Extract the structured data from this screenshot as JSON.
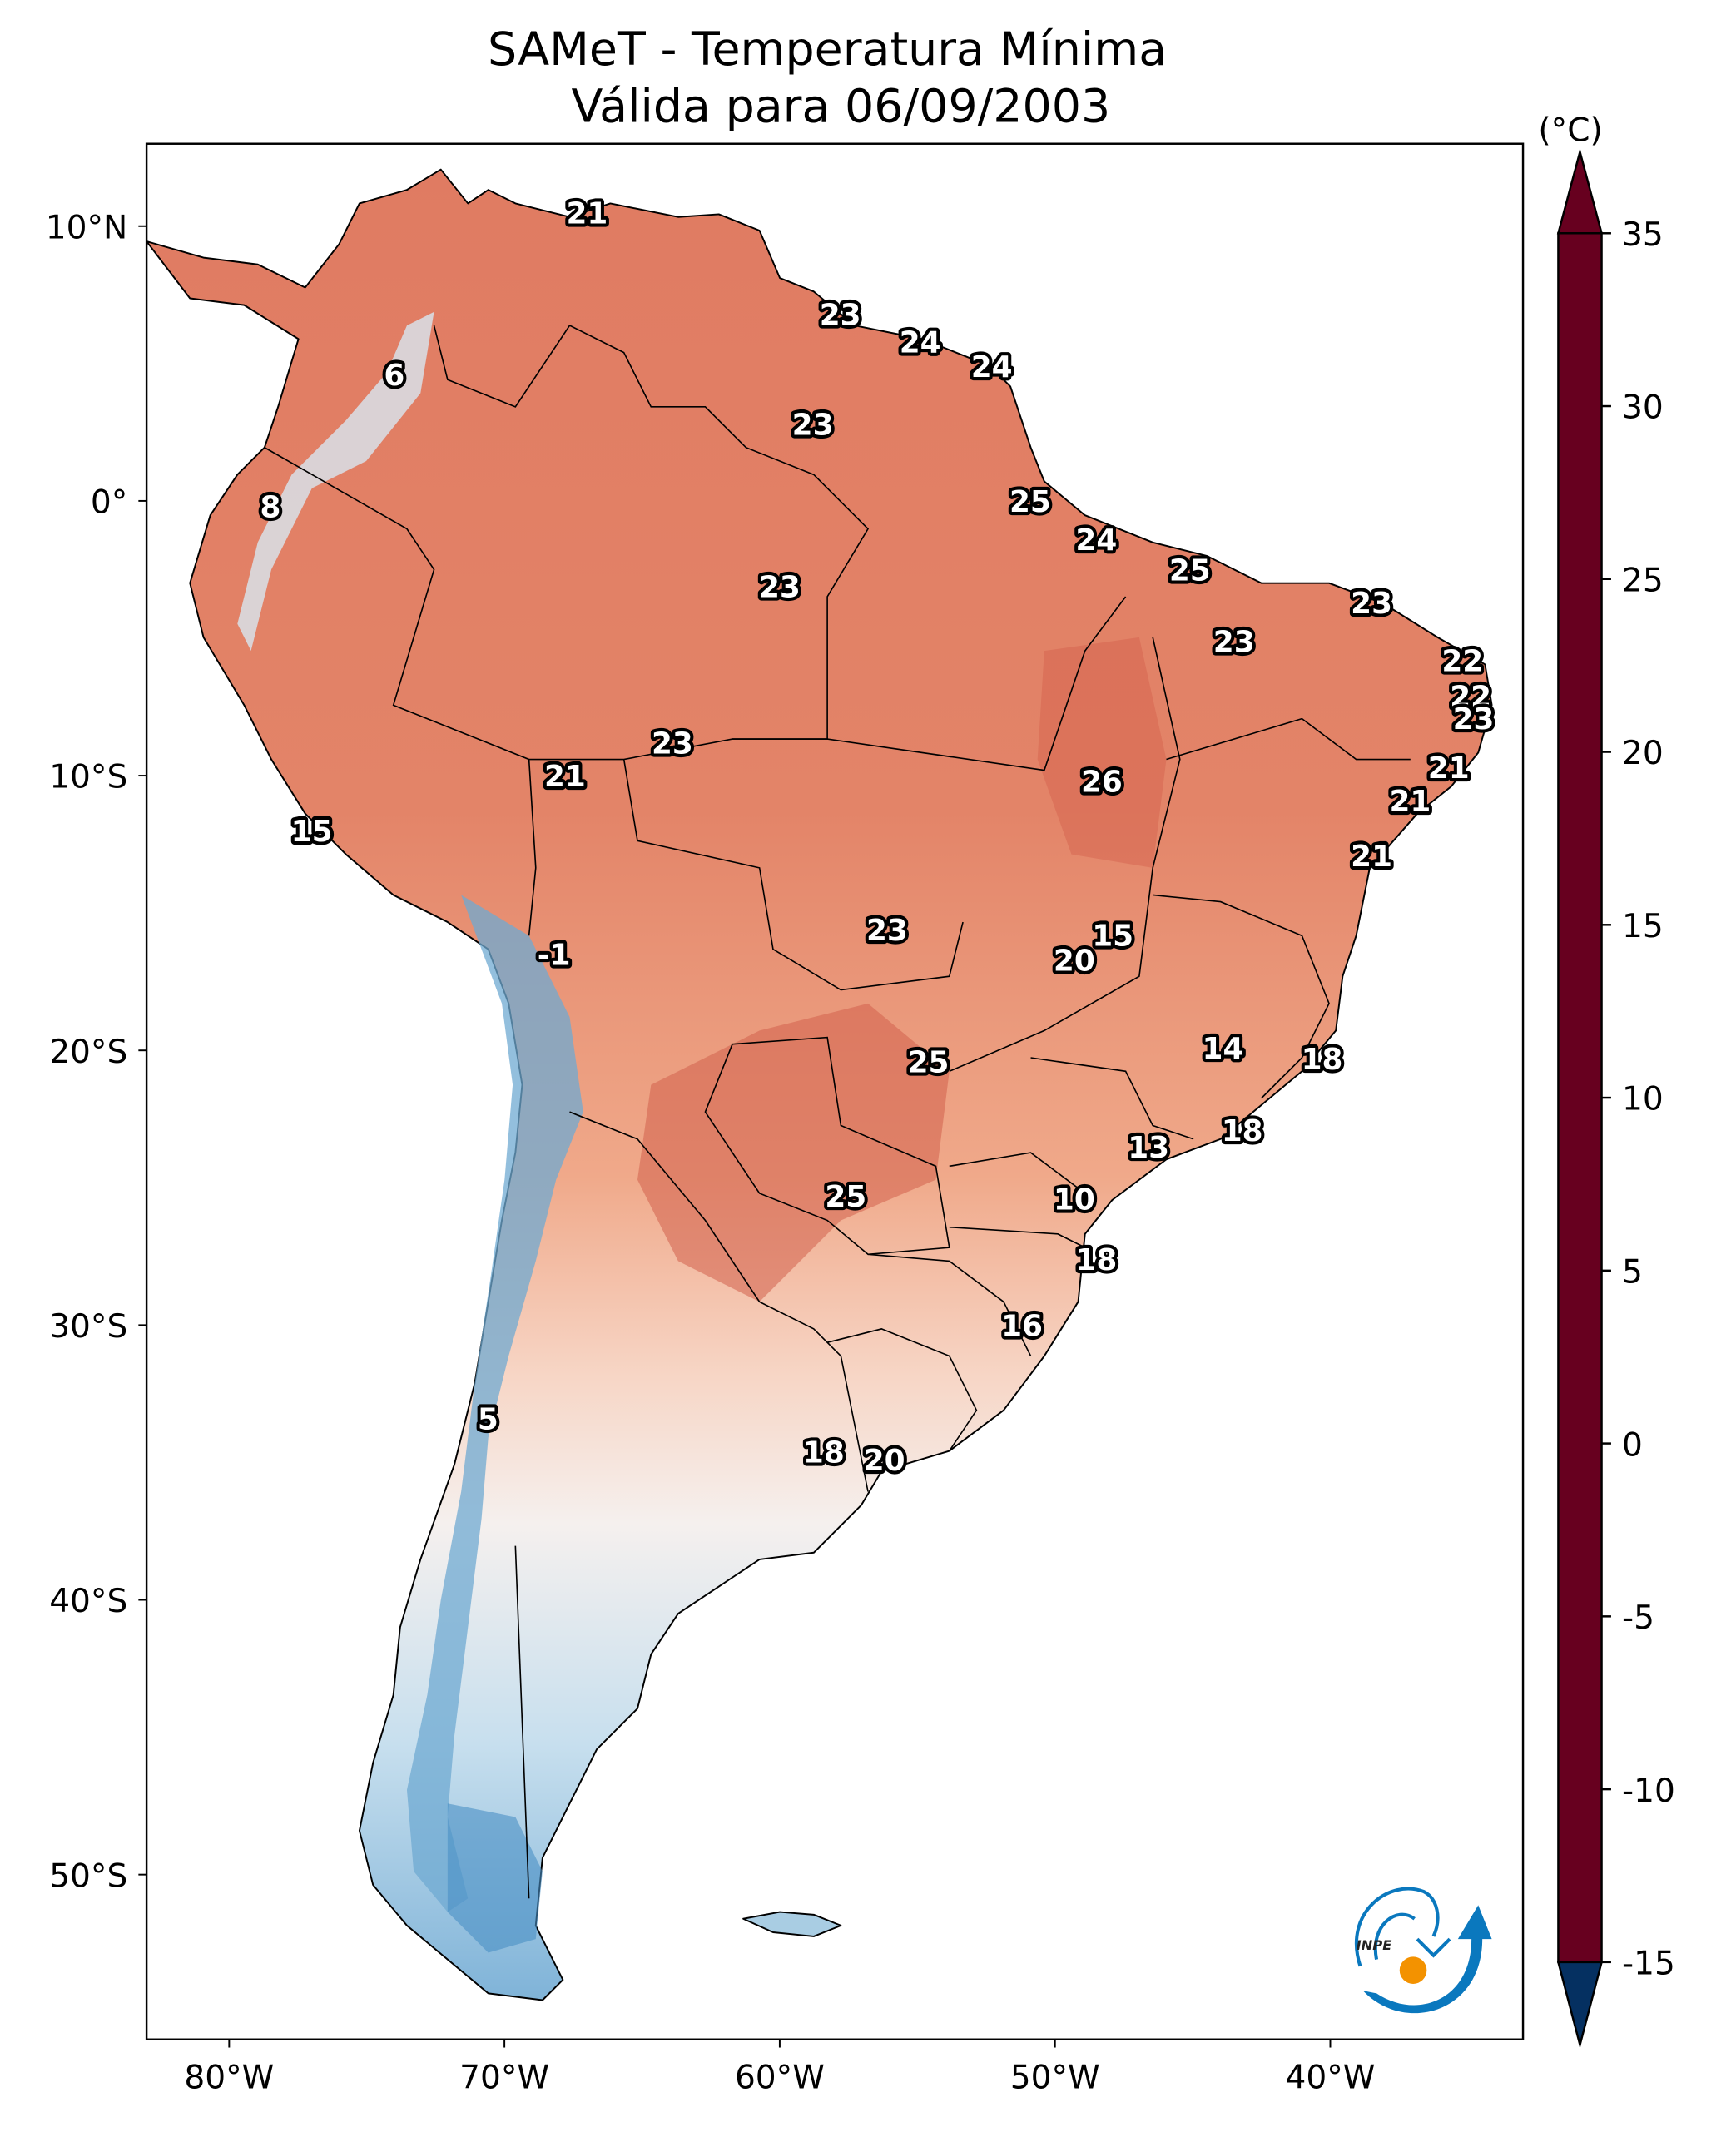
{
  "chart_data": {
    "type": "heatmap",
    "title": "SAMeT - Temperatura Mínima",
    "subtitle": "Válida para 06/09/2003",
    "colorbar": {
      "label": "(°C)",
      "ticks": [
        "35",
        "30",
        "25",
        "20",
        "15",
        "10",
        "5",
        "0",
        "-5",
        "-10",
        "-15"
      ],
      "range": [
        -15,
        35
      ],
      "extend": "both",
      "colormap": "RdBu_r",
      "stops": [
        {
          "value": 35,
          "color": "#67001f"
        },
        {
          "value": 30,
          "color": "#b2182b"
        },
        {
          "value": 25,
          "color": "#d6604d"
        },
        {
          "value": 20,
          "color": "#f4a582"
        },
        {
          "value": 15,
          "color": "#fddbc7"
        },
        {
          "value": 10,
          "color": "#f7f7f7"
        },
        {
          "value": 5,
          "color": "#d1e5f0"
        },
        {
          "value": 0,
          "color": "#92c5de"
        },
        {
          "value": -5,
          "color": "#4393c3"
        },
        {
          "value": -10,
          "color": "#2166ac"
        },
        {
          "value": -15,
          "color": "#053061"
        }
      ]
    },
    "x_axis": {
      "ticks": [
        "80°W",
        "70°W",
        "60°W",
        "50°W",
        "40°W"
      ],
      "range_lon": [
        -83,
        -33
      ]
    },
    "y_axis": {
      "ticks": [
        "10°N",
        "0°",
        "10°S",
        "20°S",
        "30°S",
        "40°S",
        "50°S"
      ],
      "range_lat": [
        -56,
        13
      ]
    },
    "station_labels": [
      {
        "value": "21",
        "lon": -67.0,
        "lat": 10.5
      },
      {
        "value": "6",
        "lon": -74.0,
        "lat": 4.6
      },
      {
        "value": "23",
        "lon": -57.8,
        "lat": 6.8
      },
      {
        "value": "24",
        "lon": -54.9,
        "lat": 5.8
      },
      {
        "value": "24",
        "lon": -52.3,
        "lat": 4.9
      },
      {
        "value": "23",
        "lon": -58.8,
        "lat": 2.8
      },
      {
        "value": "8",
        "lon": -78.5,
        "lat": -0.2
      },
      {
        "value": "25",
        "lon": -50.9,
        "lat": 0.0
      },
      {
        "value": "24",
        "lon": -48.5,
        "lat": -1.4
      },
      {
        "value": "25",
        "lon": -45.1,
        "lat": -2.5
      },
      {
        "value": "23",
        "lon": -60.0,
        "lat": -3.1
      },
      {
        "value": "23",
        "lon": -38.5,
        "lat": -3.7
      },
      {
        "value": "23",
        "lon": -43.5,
        "lat": -5.1
      },
      {
        "value": "22",
        "lon": -35.2,
        "lat": -5.8
      },
      {
        "value": "22",
        "lon": -34.9,
        "lat": -7.1
      },
      {
        "value": "23",
        "lon": -34.8,
        "lat": -7.9
      },
      {
        "value": "23",
        "lon": -63.9,
        "lat": -8.8
      },
      {
        "value": "21",
        "lon": -67.8,
        "lat": -10.0
      },
      {
        "value": "21",
        "lon": -35.7,
        "lat": -9.7
      },
      {
        "value": "26",
        "lon": -48.3,
        "lat": -10.2
      },
      {
        "value": "21",
        "lon": -37.1,
        "lat": -10.9
      },
      {
        "value": "21",
        "lon": -38.5,
        "lat": -12.9
      },
      {
        "value": "15",
        "lon": -77.0,
        "lat": -12.0
      },
      {
        "value": "23",
        "lon": -56.1,
        "lat": -15.6
      },
      {
        "value": "15",
        "lon": -47.9,
        "lat": -15.8
      },
      {
        "value": "20",
        "lon": -49.3,
        "lat": -16.7
      },
      {
        "value": "-1",
        "lon": -68.2,
        "lat": -16.5
      },
      {
        "value": "14",
        "lon": -43.9,
        "lat": -19.9
      },
      {
        "value": "18",
        "lon": -40.3,
        "lat": -20.3
      },
      {
        "value": "25",
        "lon": -54.6,
        "lat": -20.4
      },
      {
        "value": "18",
        "lon": -43.2,
        "lat": -22.9
      },
      {
        "value": "13",
        "lon": -46.6,
        "lat": -23.5
      },
      {
        "value": "25",
        "lon": -57.6,
        "lat": -25.3
      },
      {
        "value": "10",
        "lon": -49.3,
        "lat": -25.4
      },
      {
        "value": "18",
        "lon": -48.5,
        "lat": -27.6
      },
      {
        "value": "16",
        "lon": -51.2,
        "lat": -30.0
      },
      {
        "value": "5",
        "lon": -70.6,
        "lat": -33.4
      },
      {
        "value": "18",
        "lon": -58.4,
        "lat": -34.6
      },
      {
        "value": "20",
        "lon": -56.2,
        "lat": -34.9
      }
    ]
  },
  "logo": {
    "text": "INPE"
  }
}
